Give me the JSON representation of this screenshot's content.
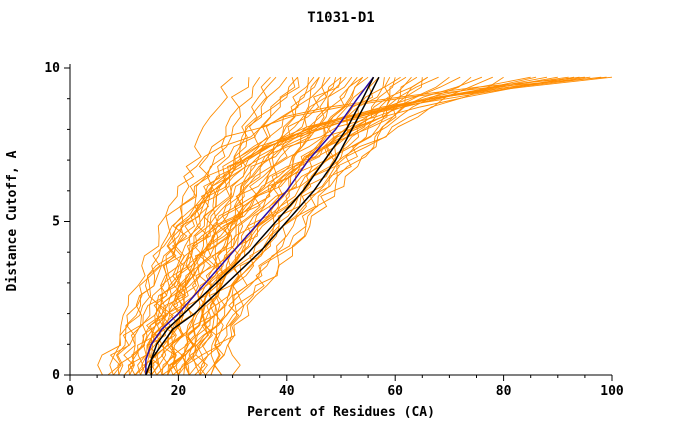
{
  "chart_data": {
    "type": "line",
    "title": "T1031-D1",
    "xlabel": "Percent of Residues (CA)",
    "ylabel": "Distance Cutoff, A",
    "xlim": [
      0,
      100
    ],
    "ylim": [
      0,
      10
    ],
    "x_ticks": [
      0,
      20,
      40,
      60,
      80,
      100
    ],
    "x_minor_step": 5,
    "y_ticks": [
      0,
      5,
      10
    ],
    "y_minor_step": 1,
    "grid": false,
    "legend": "none",
    "y_top": 9.7,
    "colors": {
      "ensemble": "#ff8c00",
      "highlight_black": "#000000",
      "highlight_blue": "#2a0ca8"
    },
    "ensemble_format": "[x_at_y0, x_at_ytop, rise_exponent]",
    "ensemble_curves": [
      [
        6,
        30,
        1.1
      ],
      [
        7,
        33,
        1.0
      ],
      [
        8,
        35,
        1.2
      ],
      [
        9,
        37,
        0.9
      ],
      [
        10,
        38,
        1.1
      ],
      [
        10,
        40,
        1.3
      ],
      [
        11,
        41,
        1.0
      ],
      [
        12,
        42,
        1.2
      ],
      [
        12,
        44,
        0.95
      ],
      [
        13,
        45,
        1.15
      ],
      [
        14,
        46,
        1.05
      ],
      [
        14,
        47,
        1.25
      ],
      [
        15,
        48,
        1.0
      ],
      [
        15,
        49,
        1.2
      ],
      [
        16,
        50,
        0.9
      ],
      [
        16,
        51,
        1.1
      ],
      [
        17,
        52,
        1.3
      ],
      [
        17,
        53,
        1.0
      ],
      [
        18,
        54,
        1.15
      ],
      [
        18,
        55,
        1.05
      ],
      [
        19,
        56,
        1.2
      ],
      [
        19,
        57,
        0.95
      ],
      [
        20,
        58,
        1.1
      ],
      [
        20,
        59,
        1.25
      ],
      [
        21,
        60,
        1.0
      ],
      [
        22,
        61,
        1.15
      ],
      [
        22,
        62,
        1.3
      ],
      [
        23,
        63,
        1.05
      ],
      [
        24,
        64,
        1.2
      ],
      [
        25,
        65,
        1.1
      ],
      [
        8,
        42,
        1.4
      ],
      [
        9,
        46,
        1.5
      ],
      [
        11,
        50,
        1.45
      ],
      [
        13,
        54,
        1.35
      ],
      [
        26,
        66,
        1.2
      ],
      [
        12,
        66,
        1.7
      ],
      [
        14,
        68,
        1.8
      ],
      [
        16,
        70,
        2.0
      ],
      [
        18,
        72,
        2.2
      ],
      [
        20,
        74,
        2.0
      ],
      [
        15,
        76,
        2.4
      ],
      [
        22,
        78,
        2.1
      ],
      [
        24,
        80,
        2.3
      ],
      [
        17,
        86,
        4.0
      ],
      [
        15,
        85,
        4.5
      ],
      [
        18,
        88,
        5.0
      ],
      [
        28,
        93,
        5.5
      ],
      [
        20,
        90,
        5.5
      ],
      [
        22,
        92,
        6.0
      ],
      [
        25,
        94,
        6.5
      ],
      [
        28,
        96,
        7.0
      ],
      [
        30,
        98,
        7.5
      ],
      [
        26,
        100,
        8.0
      ],
      [
        20,
        95,
        9.0
      ],
      [
        24,
        99,
        10.0
      ]
    ],
    "highlight_y": [
      0,
      0.5,
      1,
      1.5,
      2,
      3,
      4,
      5,
      6,
      7,
      8,
      9,
      9.7
    ],
    "highlight_series": [
      {
        "name": "model-blue",
        "color_key": "highlight_blue",
        "x": [
          14,
          14,
          15,
          17,
          20,
          25,
          30,
          35,
          40,
          44,
          49,
          53,
          56
        ]
      },
      {
        "name": "model-black-1",
        "color_key": "highlight_black",
        "x": [
          14,
          15,
          16,
          18,
          21,
          27,
          33,
          38,
          43,
          47,
          51,
          54,
          56
        ]
      },
      {
        "name": "model-black-2",
        "color_key": "highlight_black",
        "x": [
          15,
          15,
          17,
          19,
          23,
          29,
          35,
          40,
          45,
          49,
          52,
          55,
          57
        ]
      }
    ]
  }
}
